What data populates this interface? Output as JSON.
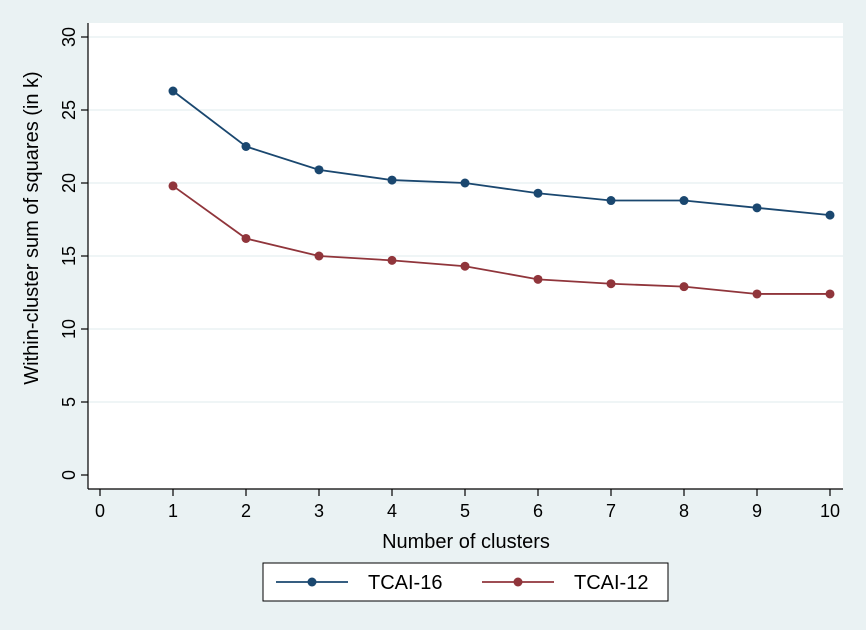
{
  "chart_data": {
    "type": "line",
    "xlabel": "Number of clusters",
    "ylabel": "Within-cluster sum of squares (in k)",
    "xlim": [
      0,
      10
    ],
    "ylim": [
      0,
      30
    ],
    "x_ticks": [
      0,
      1,
      2,
      3,
      4,
      5,
      6,
      7,
      8,
      9,
      10
    ],
    "y_ticks": [
      0,
      5,
      10,
      15,
      20,
      25,
      30
    ],
    "grid": "horizontal",
    "legend_position": "bottom",
    "x": [
      1,
      2,
      3,
      4,
      5,
      6,
      7,
      8,
      9,
      10
    ],
    "series": [
      {
        "name": "TCAI-16",
        "color": "#1a476f",
        "values": [
          26.3,
          22.5,
          20.9,
          20.2,
          20.0,
          19.3,
          18.8,
          18.8,
          18.3,
          17.8
        ]
      },
      {
        "name": "TCAI-12",
        "color": "#90353b",
        "values": [
          19.8,
          16.2,
          15.0,
          14.7,
          14.3,
          13.4,
          13.1,
          12.9,
          12.4,
          12.4
        ]
      }
    ]
  }
}
